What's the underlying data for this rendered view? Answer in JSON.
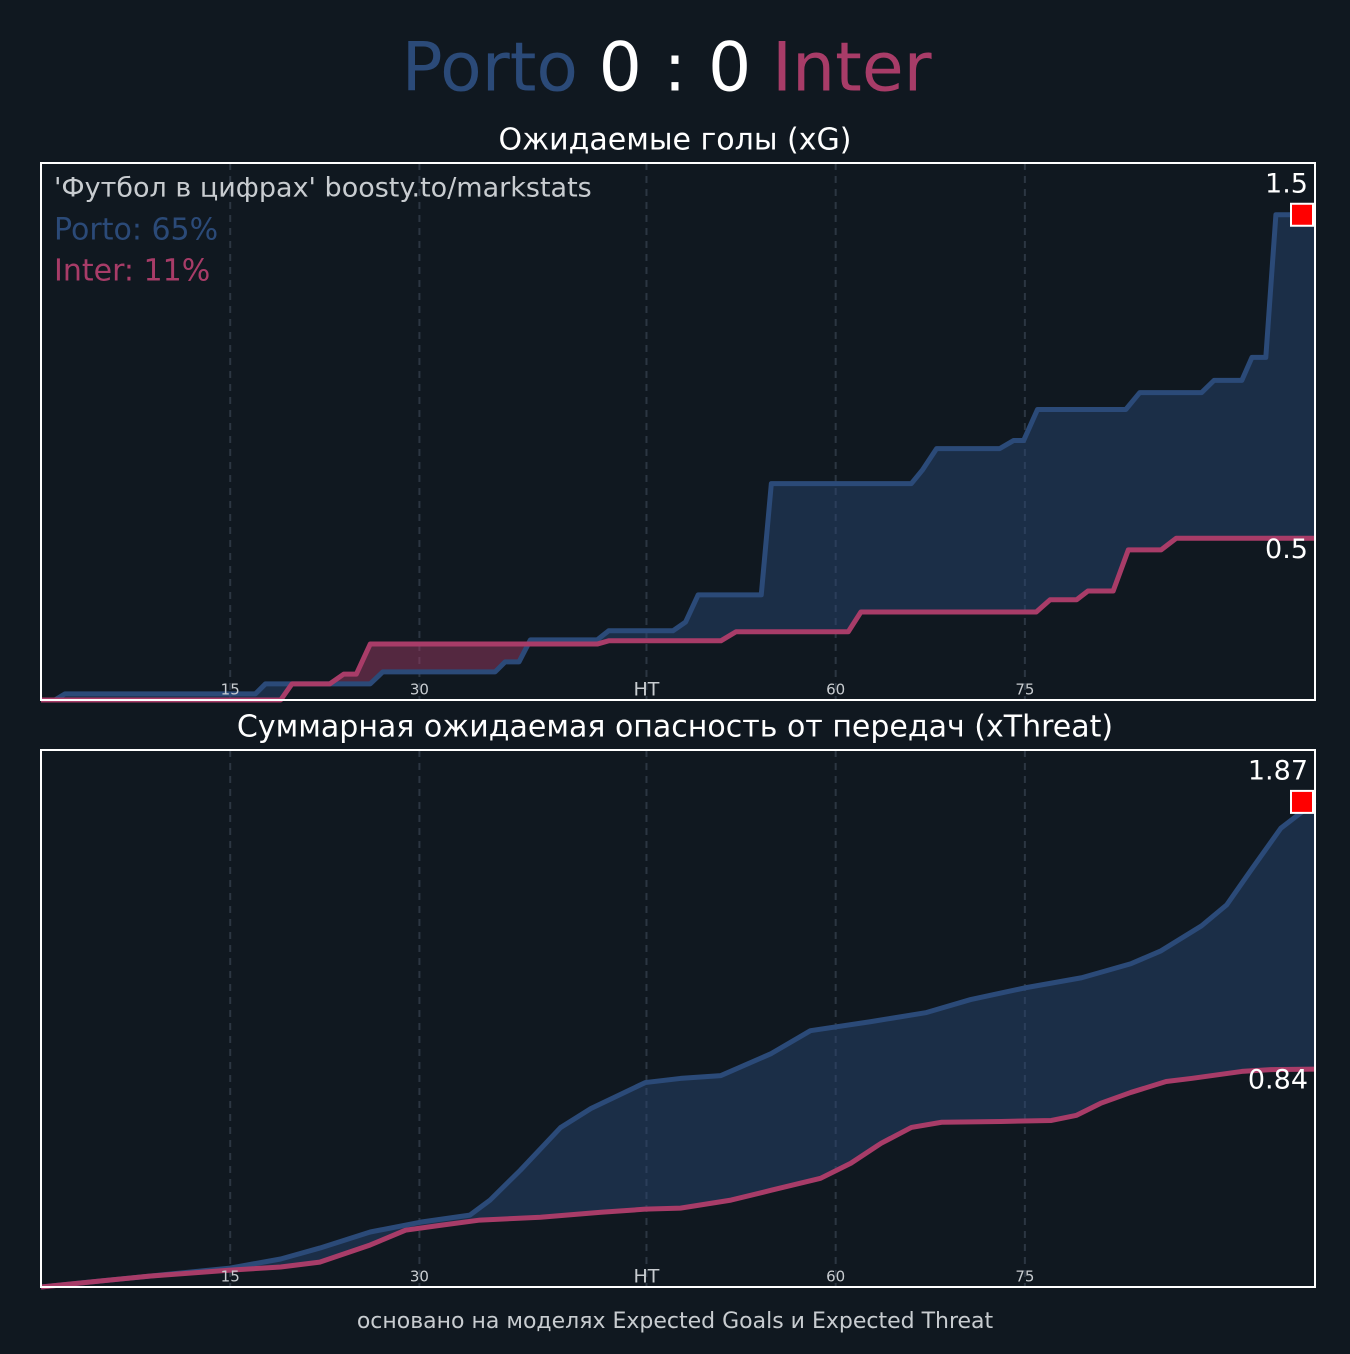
{
  "header": {
    "score": "0 : 0"
  },
  "footer": "основано на моделях Expected Goals и Expected Threat",
  "chart_data": [
    {
      "type": "line",
      "title": "Ожидаемые голы (xG)",
      "watermark": "'Футбол в цифрах' boosty.to/markstats",
      "win_probabilities": [
        "Porto: 65%",
        "Inter: 11%"
      ],
      "xlim": [
        0,
        101
      ],
      "ylim": [
        0,
        1.66
      ],
      "xticks": [
        15,
        30,
        {
          "value": 48,
          "label": "HT"
        },
        {
          "value": 63,
          "label": "60"
        },
        {
          "value": 78,
          "label": "75"
        }
      ],
      "grid": true,
      "fill_between": true,
      "end_marker_color": "#ff0000",
      "series": [
        {
          "name": "Porto",
          "color": "#2b4a78",
          "x": [
            0,
            1.1,
            1.9,
            17.0,
            17.8,
            26.1,
            27.1,
            36.0,
            36.8,
            37.9,
            38.8,
            44.1,
            45.0,
            50.1,
            51.1,
            52.1,
            57.1,
            57.9,
            69.0,
            69.9,
            71.0,
            76.0,
            77.1,
            77.9,
            79.0,
            86.0,
            87.1,
            92.0,
            93.0,
            95.2,
            96.0,
            97.1,
            97.9,
            101
          ],
          "values": [
            0,
            0,
            0.019,
            0.019,
            0.05,
            0.05,
            0.087,
            0.087,
            0.118,
            0.118,
            0.186,
            0.186,
            0.214,
            0.214,
            0.241,
            0.325,
            0.325,
            0.669,
            0.669,
            0.712,
            0.777,
            0.777,
            0.802,
            0.802,
            0.898,
            0.898,
            0.95,
            0.95,
            0.988,
            0.988,
            1.059,
            1.059,
            1.5,
            1.5
          ]
        },
        {
          "name": "Inter",
          "color": "#a83c68",
          "x": [
            0,
            19.0,
            19.9,
            22.9,
            24.0,
            25.0,
            26.1,
            44.1,
            45.0,
            53.9,
            55.1,
            64.0,
            65.0,
            78.9,
            80.0,
            82.1,
            83.0,
            85.0,
            86.2,
            88.8,
            90.0,
            101
          ],
          "values": [
            0,
            0,
            0.05,
            0.05,
            0.08,
            0.08,
            0.173,
            0.173,
            0.183,
            0.183,
            0.211,
            0.211,
            0.272,
            0.272,
            0.31,
            0.31,
            0.337,
            0.337,
            0.464,
            0.464,
            0.5,
            0.5
          ]
        }
      ]
    },
    {
      "type": "line",
      "title": "Суммарная ожидаемая опасность от передач (xThreat)",
      "xlim": [
        0,
        101
      ],
      "ylim": [
        0,
        2.07
      ],
      "xticks": [
        15,
        30,
        {
          "value": 48,
          "label": "HT"
        },
        {
          "value": 63,
          "label": "60"
        },
        {
          "value": 78,
          "label": "75"
        }
      ],
      "grid": true,
      "fill_between": true,
      "end_marker_color": "#ff0000",
      "series": [
        {
          "name": "Porto",
          "color": "#2b4a78",
          "x": [
            0,
            4.7,
            8.6,
            15.0,
            19.0,
            22.1,
            26.1,
            30.1,
            34.0,
            35.6,
            38.0,
            41.2,
            43.6,
            47.9,
            50.7,
            53.9,
            57.9,
            61.0,
            65.8,
            70.2,
            73.7,
            78.1,
            82.5,
            86.4,
            88.8,
            92.0,
            94.0,
            96.0,
            98.3,
            101
          ],
          "values": [
            0,
            0.023,
            0.042,
            0.073,
            0.108,
            0.15,
            0.212,
            0.25,
            0.277,
            0.335,
            0.45,
            0.615,
            0.688,
            0.788,
            0.804,
            0.815,
            0.9,
            0.988,
            1.023,
            1.058,
            1.108,
            1.154,
            1.192,
            1.246,
            1.296,
            1.392,
            1.473,
            1.612,
            1.769,
            1.87
          ]
        },
        {
          "name": "Inter",
          "color": "#a83c68",
          "x": [
            0,
            4.7,
            8.6,
            15.0,
            19.0,
            22.1,
            26.1,
            28.9,
            31.7,
            34.8,
            39.6,
            44.4,
            47.9,
            50.7,
            54.7,
            57.9,
            61.8,
            64.2,
            66.6,
            69.0,
            71.4,
            76.1,
            80.1,
            82.1,
            84.0,
            86.4,
            89.2,
            91.2,
            95.2,
            97.5,
            101
          ],
          "values": [
            0,
            0.023,
            0.042,
            0.065,
            0.077,
            0.096,
            0.162,
            0.219,
            0.238,
            0.258,
            0.269,
            0.288,
            0.3,
            0.304,
            0.335,
            0.373,
            0.419,
            0.477,
            0.554,
            0.615,
            0.635,
            0.638,
            0.642,
            0.662,
            0.708,
            0.75,
            0.792,
            0.804,
            0.831,
            0.838,
            0.84
          ]
        }
      ]
    }
  ]
}
